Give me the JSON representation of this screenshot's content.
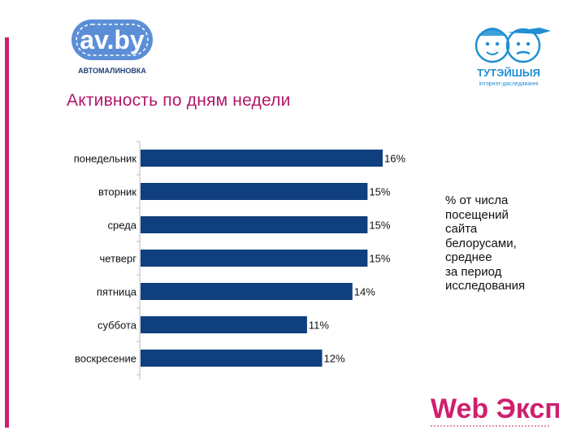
{
  "slide": {
    "title": "Активность по дням недели",
    "note_lines": [
      "% от числа",
      "посещений",
      "сайта",
      "белорусами,",
      "среднее",
      "за период",
      "исследования"
    ]
  },
  "logos": {
    "av_by": {
      "wordmark": "av.by",
      "tagline": "АВТОМАЛИНОВКА"
    },
    "tuteyshyya": {
      "name": "ТУТЭЙШЫЯ",
      "tagline": "інтэрнэт-даследаванні"
    },
    "web_expert": {
      "wordmark": "Web Эксперт"
    }
  },
  "colors": {
    "bar": "#0f3f7e",
    "title": "#b0176a",
    "accent": "#cf1f6e",
    "logo_blue": "#5b8ed6",
    "logo_navy": "#20407a"
  },
  "chart_data": {
    "type": "bar",
    "orientation": "horizontal",
    "categories": [
      "понедельник",
      "вторник",
      "среда",
      "четверг",
      "пятница",
      "суббота",
      "воскресение"
    ],
    "values": [
      16,
      15,
      15,
      15,
      14,
      11,
      12
    ],
    "data_labels": [
      "16%",
      "15%",
      "15%",
      "15%",
      "14%",
      "11%",
      "12%"
    ],
    "unit": "%",
    "xlim": [
      0,
      16
    ],
    "grid": false,
    "legend": "none"
  }
}
